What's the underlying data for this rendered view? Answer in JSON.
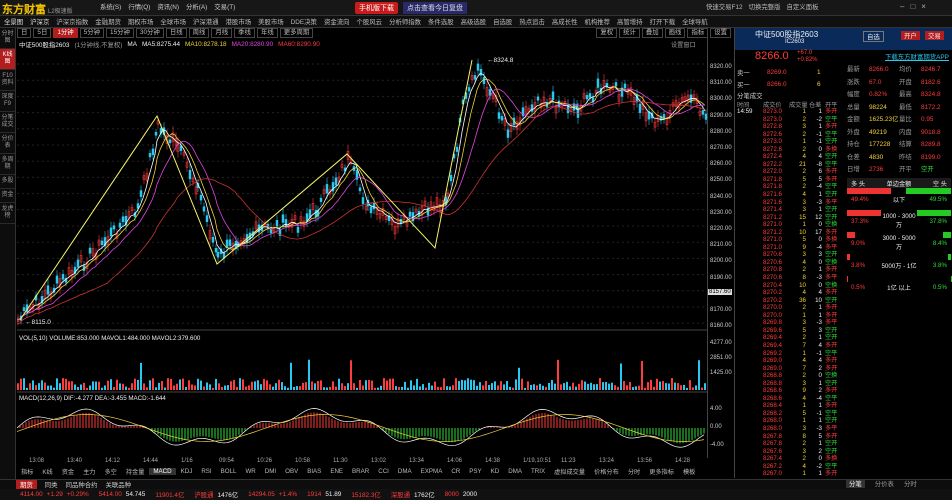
{
  "app": {
    "logo": "东方财富",
    "logo_sub": "L2极速版",
    "menu": [
      "系统(S)",
      "行情(Q)",
      "资讯(N)",
      "分析(A)",
      "交易(T)",
      "沪深京",
      "科创板",
      "板块监测",
      "沪深京指数",
      "金融期货",
      "期权市场",
      "全球市场",
      "沪深港通",
      "港股市场",
      "美股市场",
      "DDE决策",
      "资金流向",
      "个股风云",
      "分析师指数",
      "条件选股",
      "高级选股",
      "自选股",
      "热点追击",
      "高成长性",
      "机构推荐",
      "高管增持"
    ],
    "top_right": [
      "快速交易F12",
      "切换完整版",
      "自定义面板"
    ],
    "navbar": [
      "全景图",
      "沪深京",
      "沪深京指数",
      "金融期货",
      "期权市场",
      "全球市场",
      "沪深港通",
      "港股市场",
      "美股市场",
      "DDE决策",
      "资金流向",
      "个股风云",
      "分析师指数",
      "条件选股",
      "高级选股",
      "自选股",
      "热点追击",
      "高成长性",
      "机构推荐",
      "高管增持",
      "打开下载",
      "全球导航"
    ],
    "promo_btns": [
      "手机版下载",
      "点击查看今日复盘"
    ]
  },
  "left_tabs": [
    "分时图",
    "K线图",
    "F10资料",
    "深度F9",
    "分笔成交",
    "分价表",
    "多周期",
    "多股",
    "资金",
    "龙虎榜"
  ],
  "left_tab_active": 1,
  "chart_toolbar": {
    "periods": [
      "日",
      "5日",
      "1分钟",
      "5分钟",
      "15分钟",
      "30分钟",
      "日线",
      "周线",
      "月线",
      "季线",
      "年线",
      "更多周期"
    ],
    "active": 2,
    "right": [
      "复权",
      "统计",
      "叠加",
      "画线",
      "指标",
      "设置"
    ]
  },
  "chart_title": "中证500股指2603",
  "chart_title_sub": "(1分钟线,不复权)",
  "ma_line": {
    "MA5": "MA5:8275.44",
    "MA10": "MA10:8278.18",
    "MA20": "MA20:8280.90",
    "MA60": "MA60:8290.90"
  },
  "settings_link": "设置窗口",
  "price_ticks": [
    "8320.00",
    "8310.00",
    "8300.00",
    "8290.00",
    "8280.00",
    "8270.00",
    "8260.00",
    "8250.00",
    "8240.00",
    "8230.00",
    "8220.00",
    "8210.00",
    "8200.00",
    "8190.00",
    "8180.00",
    "8170.00",
    "8160.00"
  ],
  "current_price_label": "8157.60",
  "high_label": "8324.8",
  "low_label": "8115.0",
  "vol_line": "VOL(5,10)  VOLUME:853.000  MAVOL1:484.000  MAVOL2:379.600",
  "vol_ticks": [
    "4277.00",
    "2851.00",
    "1425.00"
  ],
  "macd_line": "MACD(12,26,9)  DIF:-4.277  DEA:-3.455  MACD:-1.644",
  "macd_ticks": [
    "4.00",
    "0.00",
    "-4.00"
  ],
  "time_ticks": [
    "13:08",
    "13:40",
    "14:12",
    "14:44",
    "1/16",
    "09:54",
    "10:26",
    "10:58",
    "11:30",
    "13:02",
    "13:34",
    "14:06",
    "14:38",
    "1/19,10:51",
    "11:23",
    "13:24",
    "13:56",
    "14:28"
  ],
  "indicator_tabs": [
    "指标",
    "K线",
    "资金",
    "主力",
    "多空",
    "持金量",
    "MACD",
    "KDJ",
    "RSI",
    "BOLL",
    "WR",
    "DMI",
    "OBV",
    "BIAS",
    "ENE",
    "BRAR",
    "CCI",
    "DMA",
    "EXPMA",
    "CR",
    "PSY",
    "KD",
    "DMA",
    "TRIX",
    "虚拟成交量",
    "价格分布",
    "分时",
    "更多指标",
    "模板"
  ],
  "indicator_active": "MACD",
  "bottom_tabs": [
    "期货",
    "同类",
    "同品种合约",
    "关联品种"
  ],
  "ticker": [
    [
      "4114.00",
      "+1.29",
      "+0.29%"
    ],
    [
      "5414.00",
      "54.745"
    ],
    [
      "11901.4亿"
    ],
    [
      "沪股通",
      "1476亿"
    ],
    [
      "14294.05",
      "+1.4%"
    ],
    [
      "1914",
      "51.89"
    ],
    [
      "15182.3亿"
    ],
    [
      "深股通",
      "1762亿"
    ],
    [
      "8000",
      "2000"
    ]
  ],
  "quote": {
    "name": "中证500股指2603",
    "code": "IC2603",
    "price": "8266.0",
    "change": "+67.0",
    "pct": "+0.82%",
    "buttons": [
      "自选",
      "开户",
      "交易"
    ],
    "app_link": "下载东方财富期货APP",
    "sell1": {
      "label": "卖一",
      "price": "8269.0",
      "vol": "1"
    },
    "buy1": {
      "label": "买一",
      "price": "8266.0",
      "vol": "6"
    },
    "stats": [
      [
        "最新",
        "8266.0",
        "均价",
        "8246.7"
      ],
      [
        "涨跌",
        "67.0",
        "开盘",
        "8182.6"
      ],
      [
        "幅度",
        "0.82%",
        "最高",
        "8324.8"
      ],
      [
        "总量",
        "98224",
        "最低",
        "8172.2"
      ],
      [
        "金额",
        "1625.23亿",
        "量比",
        "0.95"
      ],
      [
        "外盘",
        "49219",
        "内盘",
        "9018.8"
      ],
      [
        "持仓",
        "177228",
        "结算",
        "8289.8"
      ],
      [
        "仓差",
        "4830",
        "昨结",
        "8199.0"
      ],
      [
        "日增",
        "2736",
        "开平",
        "空开"
      ]
    ],
    "tick_header": [
      "分笔成交",
      "时间",
      "成交价",
      "成交量",
      "仓差",
      "开平"
    ],
    "ticks": [
      [
        "14:59",
        "8273.0",
        "1",
        "1",
        "多开"
      ],
      [
        "",
        "8273.0",
        "2",
        "-2",
        "空平"
      ],
      [
        "",
        "8272.8",
        "3",
        "1",
        "多开"
      ],
      [
        "",
        "8272.6",
        "2",
        "-1",
        "空平"
      ],
      [
        "",
        "8273.0",
        "1",
        "-1",
        "空开"
      ],
      [
        "",
        "8272.6",
        "2",
        "0",
        "多换"
      ],
      [
        "",
        "8272.4",
        "4",
        "4",
        "空开"
      ],
      [
        "",
        "8272.2",
        "21",
        "-8",
        "空平"
      ],
      [
        "",
        "8272.0",
        "2",
        "6",
        "多开"
      ],
      [
        "",
        "8271.8",
        "5",
        "5",
        "多开"
      ],
      [
        "",
        "8271.8",
        "2",
        "-4",
        "空平"
      ],
      [
        "",
        "8271.6",
        "4",
        "1",
        "空开"
      ],
      [
        "",
        "8271.6",
        "3",
        "-3",
        "多平"
      ],
      [
        "",
        "8271.4",
        "3",
        "1",
        "空开"
      ],
      [
        "",
        "8271.2",
        "15",
        "12",
        "空开"
      ],
      [
        "",
        "8271.0",
        "1",
        "0",
        "空换"
      ],
      [
        "",
        "8271.2",
        "10",
        "17",
        "多开"
      ],
      [
        "",
        "8271.0",
        "5",
        "0",
        "多换"
      ],
      [
        "",
        "8271.0",
        "9",
        "-4",
        "多平"
      ],
      [
        "",
        "8270.8",
        "3",
        "3",
        "空开"
      ],
      [
        "",
        "8270.6",
        "4",
        "0",
        "空换"
      ],
      [
        "",
        "8270.8",
        "2",
        "1",
        "多开"
      ],
      [
        "",
        "8270.6",
        "8",
        "-3",
        "多平"
      ],
      [
        "",
        "8270.4",
        "10",
        "0",
        "空换"
      ],
      [
        "",
        "8270.2",
        "4",
        "4",
        "多开"
      ],
      [
        "",
        "8270.2",
        "36",
        "10",
        "空开"
      ],
      [
        "",
        "8270.0",
        "2",
        "1",
        "多开"
      ],
      [
        "",
        "8270.0",
        "1",
        "1",
        "多开"
      ],
      [
        "",
        "8269.8",
        "3",
        "-3",
        "多平"
      ],
      [
        "",
        "8269.6",
        "5",
        "3",
        "空开"
      ],
      [
        "",
        "8269.4",
        "2",
        "1",
        "空开"
      ],
      [
        "",
        "8269.4",
        "7",
        "4",
        "多开"
      ],
      [
        "",
        "8269.2",
        "1",
        "-1",
        "空平"
      ],
      [
        "",
        "8269.0",
        "4",
        "4",
        "多开"
      ],
      [
        "",
        "8269.0",
        "7",
        "2",
        "多开"
      ],
      [
        "",
        "8268.8",
        "2",
        "0",
        "空换"
      ],
      [
        "",
        "8268.8",
        "3",
        "1",
        "空开"
      ],
      [
        "",
        "8268.6",
        "9",
        "2",
        "多开"
      ],
      [
        "",
        "8268.6",
        "4",
        "-4",
        "空平"
      ],
      [
        "",
        "8268.4",
        "1",
        "1",
        "多开"
      ],
      [
        "",
        "8268.2",
        "5",
        "-1",
        "空平"
      ],
      [
        "",
        "8268.0",
        "1",
        "1",
        "空开"
      ],
      [
        "",
        "8268.0",
        "3",
        "-3",
        "多平"
      ],
      [
        "",
        "8267.8",
        "8",
        "5",
        "多开"
      ],
      [
        "",
        "8267.8",
        "2",
        "1",
        "空开"
      ],
      [
        "",
        "8267.6",
        "3",
        "2",
        "空开"
      ],
      [
        "",
        "8267.4",
        "2",
        "0",
        "多换"
      ],
      [
        "",
        "8267.2",
        "4",
        "-2",
        "空平"
      ],
      [
        "",
        "8267.0",
        "1",
        "1",
        "多开"
      ]
    ],
    "flow_header": [
      "多 头",
      "单边金额",
      "空 头"
    ],
    "flow": [
      [
        "49.4%",
        "以下",
        "49.5%"
      ],
      [
        "37.3%",
        "1000 - 3000万",
        "37.8%"
      ],
      [
        "9.0%",
        "3000 - 5000万",
        "8.4%"
      ],
      [
        "3.8%",
        "5000万 - 1亿",
        "3.8%"
      ],
      [
        "0.5%",
        "1亿 以上",
        "0.5%"
      ]
    ],
    "footer_tabs": [
      "分笔",
      "分价表",
      "分时"
    ]
  }
}
